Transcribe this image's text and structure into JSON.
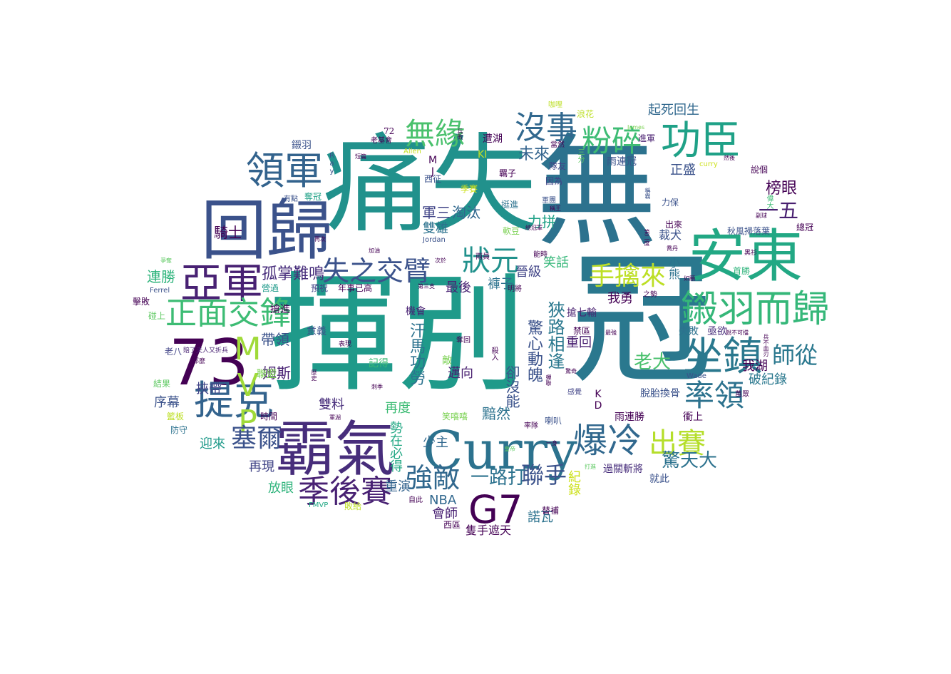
{
  "word_cloud": {
    "words": [
      {
        "text": "揮別",
        "color": "#1f9a8a"
      },
      {
        "text": "痛失",
        "color": "#21918c"
      },
      {
        "text": "無",
        "color": "#2c728e"
      },
      {
        "text": "回歸",
        "color": "#3b528b"
      },
      {
        "text": "冠",
        "color": "#2a788e"
      },
      {
        "text": "安東",
        "color": "#22a884"
      },
      {
        "text": "霸氣",
        "color": "#472d7b"
      },
      {
        "text": "Curry",
        "color": "#2c728e"
      },
      {
        "text": "73",
        "color": "#440154"
      },
      {
        "text": "亞軍",
        "color": "#482173"
      },
      {
        "text": "領軍",
        "color": "#33638d"
      },
      {
        "text": "功臣",
        "color": "#1fa187"
      },
      {
        "text": "鎩羽而歸",
        "color": "#35b779"
      },
      {
        "text": "坐鎮",
        "color": "#2a788e"
      },
      {
        "text": "正面交鋒",
        "color": "#3dbc74"
      },
      {
        "text": "G7",
        "color": "#440154"
      },
      {
        "text": "提克",
        "color": "#33638d"
      },
      {
        "text": "爆冷",
        "color": "#31688e"
      },
      {
        "text": "無緣",
        "color": "#4ac16d"
      },
      {
        "text": "狀元",
        "color": "#21918c"
      },
      {
        "text": "粉碎",
        "color": "#3dbc74"
      },
      {
        "text": "沒事",
        "color": "#31688e"
      },
      {
        "text": "失之交臂",
        "color": "#3b528b"
      },
      {
        "text": "MVP",
        "color": "#a0da39"
      },
      {
        "text": "季後賽",
        "color": "#482173"
      },
      {
        "text": "強敵",
        "color": "#31688e"
      },
      {
        "text": "出賽",
        "color": "#b5de2b"
      },
      {
        "text": "率領",
        "color": "#2c728e"
      },
      {
        "text": "手擒來",
        "color": "#bddf26"
      },
      {
        "text": "師從",
        "color": "#2a788e"
      },
      {
        "text": "塞爾",
        "color": "#3b528b"
      },
      {
        "text": "驚天大",
        "color": "#2c728e"
      },
      {
        "text": "一五",
        "color": "#481f70"
      },
      {
        "text": "聯手",
        "color": "#3b528b"
      },
      {
        "text": "老大",
        "color": "#4ac16d"
      },
      {
        "text": "孤掌難鳴",
        "color": "#472d7b"
      },
      {
        "text": "騎士",
        "color": "#440154"
      },
      {
        "text": "榜眼",
        "color": "#440154"
      },
      {
        "text": "選秀",
        "color": "#440154"
      },
      {
        "text": "起死回生",
        "color": "#31688e"
      },
      {
        "text": "正盛",
        "color": "#3b528b"
      },
      {
        "text": "未來",
        "color": "#33638d"
      },
      {
        "text": "力拼",
        "color": "#1fa187"
      },
      {
        "text": "軍三",
        "color": "#414487"
      },
      {
        "text": "淘汰",
        "color": "#31688e"
      },
      {
        "text": "雙雄",
        "color": "#2c728e"
      },
      {
        "text": "一路打",
        "color": "#2c728e"
      },
      {
        "text": "連勝",
        "color": "#2fb47c"
      },
      {
        "text": "晉級",
        "color": "#414487"
      },
      {
        "text": "笑話",
        "color": "#35b779"
      },
      {
        "text": "褲子",
        "color": "#2c728e"
      },
      {
        "text": "最後",
        "color": "#482173"
      },
      {
        "text": "我勇",
        "color": "#440154"
      },
      {
        "text": "汗馬功勞",
        "color": "#2c728e"
      },
      {
        "text": "驚心動魄",
        "color": "#3b528b"
      },
      {
        "text": "狹路相逢",
        "color": "#2a788e"
      },
      {
        "text": "帶領",
        "color": "#3b528b"
      },
      {
        "text": "姆斯",
        "color": "#482173"
      },
      {
        "text": "挾帶",
        "color": "#414487"
      },
      {
        "text": "邁向",
        "color": "#481f70"
      },
      {
        "text": "再度",
        "color": "#3dbc74"
      },
      {
        "text": "雙料",
        "color": "#472d7b"
      },
      {
        "text": "序幕",
        "color": "#3b528b"
      },
      {
        "text": "迎來",
        "color": "#1f9a8a"
      },
      {
        "text": "再現",
        "color": "#414487"
      },
      {
        "text": "放眼",
        "color": "#2fb47c"
      },
      {
        "text": "重演",
        "color": "#33638d"
      },
      {
        "text": "NBA",
        "color": "#31688e"
      },
      {
        "text": "會師",
        "color": "#482173"
      },
      {
        "text": "諾瓦",
        "color": "#2c728e"
      },
      {
        "text": "隻手遮天",
        "color": "#440154"
      },
      {
        "text": "紀錄",
        "color": "#cde11d"
      },
      {
        "text": "我湖",
        "color": "#440154"
      },
      {
        "text": "破紀錄",
        "color": "#2a788e"
      },
      {
        "text": "重回",
        "color": "#481f70"
      },
      {
        "text": "黯然",
        "color": "#2c728e"
      },
      {
        "text": "少主",
        "color": "#31688e"
      },
      {
        "text": "勢在必得",
        "color": "#22a884"
      },
      {
        "text": "卻沒能",
        "color": "#3b528b"
      },
      {
        "text": "KD",
        "color": "#440154"
      },
      {
        "text": "脫胎換骨",
        "color": "#3b528b"
      },
      {
        "text": "雨連勝",
        "color": "#440154"
      },
      {
        "text": "衝上",
        "color": "#440154"
      },
      {
        "text": "過關斬將",
        "color": "#472d7b"
      },
      {
        "text": "就此",
        "color": "#3b528b"
      },
      {
        "text": "雨連冠",
        "color": "#3b528b"
      },
      {
        "text": "裁犬",
        "color": "#3b528b"
      },
      {
        "text": "小熊",
        "color": "#2c728e"
      },
      {
        "text": "秋風掃落葉",
        "color": "#3b528b"
      },
      {
        "text": "禁區",
        "color": "#440154"
      },
      {
        "text": "搶七輸",
        "color": "#481f70"
      },
      {
        "text": "失敗",
        "color": "#2c728e"
      },
      {
        "text": "亟欲",
        "color": "#472d7b"
      },
      {
        "text": "機會",
        "color": "#482173"
      },
      {
        "text": "意義",
        "color": "#3b528b"
      },
      {
        "text": "搶進",
        "color": "#440154"
      },
      {
        "text": "聯盟",
        "color": "#7ad151"
      },
      {
        "text": "記得",
        "color": "#3dbc74"
      },
      {
        "text": "敵",
        "color": "#7ad151"
      },
      {
        "text": "擊敗",
        "color": "#440154"
      },
      {
        "text": "碰上",
        "color": "#5ec962"
      },
      {
        "text": "營過",
        "color": "#1f9a8a"
      },
      {
        "text": "預祝",
        "color": "#414487"
      },
      {
        "text": "年事已高",
        "color": "#440154"
      },
      {
        "text": "鎩羽",
        "color": "#3b528b"
      },
      {
        "text": "遭湖",
        "color": "#440154"
      },
      {
        "text": "進軍",
        "color": "#481f70"
      },
      {
        "text": "挺進",
        "color": "#2c728e"
      },
      {
        "text": "軟豆",
        "color": "#7ad151"
      },
      {
        "text": "喇叭",
        "color": "#3b528b"
      },
      {
        "text": "雙雙",
        "color": "#440154"
      },
      {
        "text": "結果",
        "color": "#5ec962"
      },
      {
        "text": "籃板",
        "color": "#bddf26"
      },
      {
        "text": "防守",
        "color": "#2c728e"
      },
      {
        "text": "時間",
        "color": "#440154"
      },
      {
        "text": "老八",
        "color": "#414487"
      },
      {
        "text": "首勝",
        "color": "#2fb47c"
      },
      {
        "text": "說個",
        "color": "#440154"
      },
      {
        "text": "總冠",
        "color": "#440154"
      },
      {
        "text": "萬眾",
        "color": "#440154"
      },
      {
        "text": "感覺",
        "color": "#414487"
      },
      {
        "text": "替補",
        "color": "#440154"
      },
      {
        "text": "夢碎",
        "color": "#440154"
      },
      {
        "text": "西區",
        "color": "#440154"
      },
      {
        "text": "敗給",
        "color": "#bddf26"
      },
      {
        "text": "FMVP",
        "color": "#22a884"
      },
      {
        "text": "西征",
        "color": "#3b528b"
      },
      {
        "text": "季賽",
        "color": "#cde11d"
      },
      {
        "text": "隊友",
        "color": "#414487"
      },
      {
        "text": "因為",
        "color": "#414487"
      },
      {
        "text": "三分",
        "color": "#5ec962"
      },
      {
        "text": "當然",
        "color": "#440154"
      },
      {
        "text": "出來",
        "color": "#440154"
      },
      {
        "text": "力保",
        "color": "#3b528b"
      },
      {
        "text": "稱霸",
        "color": "#3b528b"
      },
      {
        "text": "浪花",
        "color": "#bddf26"
      },
      {
        "text": "咖哩",
        "color": "#bddf26"
      },
      {
        "text": "72",
        "color": "#440154"
      },
      {
        "text": "老基會",
        "color": "#440154"
      },
      {
        "text": "MJ",
        "color": "#440154"
      },
      {
        "text": "KI",
        "color": "#c2df23"
      },
      {
        "text": "Allen",
        "color": "#c2df23"
      },
      {
        "text": "Ray",
        "color": "#3b528b"
      },
      {
        "text": "Ferrel",
        "color": "#3b528b"
      },
      {
        "text": "Jordan",
        "color": "#3b528b"
      },
      {
        "text": "James",
        "color": "#7ad151"
      },
      {
        "text": "Wade",
        "color": "#3b528b"
      },
      {
        "text": "curry",
        "color": "#cde11d"
      },
      {
        "text": "奪冠",
        "color": "#1fa187"
      },
      {
        "text": "有點",
        "color": "#3b528b"
      },
      {
        "text": "表現",
        "color": "#440154"
      },
      {
        "text": "那麼",
        "color": "#440154"
      },
      {
        "text": "賠了夫人又折兵",
        "color": "#482173"
      },
      {
        "text": "黑衫",
        "color": "#440154"
      },
      {
        "text": "偉大",
        "color": "#3dbc74"
      },
      {
        "text": "然後",
        "color": "#440154"
      },
      {
        "text": "加油",
        "color": "#440154"
      },
      {
        "text": "第三支",
        "color": "#440154"
      },
      {
        "text": "次於",
        "color": "#440154"
      },
      {
        "text": "爭奪",
        "color": "#5ec962"
      },
      {
        "text": "最強",
        "color": "#440154"
      },
      {
        "text": "皇帝",
        "color": "#5ec962"
      },
      {
        "text": "奪回",
        "color": "#440154"
      },
      {
        "text": "率隊",
        "color": "#440154"
      },
      {
        "text": "之勢",
        "color": "#440154"
      },
      {
        "text": "兩員",
        "color": "#440154"
      },
      {
        "text": "能時",
        "color": "#440154"
      },
      {
        "text": "笑嘻嘻",
        "color": "#7ad151"
      },
      {
        "text": "軍團",
        "color": "#3b528b"
      },
      {
        "text": "打進",
        "color": "#5ec962"
      },
      {
        "text": "自此",
        "color": "#440154"
      },
      {
        "text": "然後",
        "color": "#440154"
      },
      {
        "text": "喬丹",
        "color": "#440154"
      },
      {
        "text": "如願",
        "color": "#440154"
      },
      {
        "text": "副球",
        "color": "#440154"
      },
      {
        "text": "明將",
        "color": "#440154"
      },
      {
        "text": "軍湖",
        "color": "#440154"
      },
      {
        "text": "短篇",
        "color": "#440154"
      },
      {
        "text": "再次",
        "color": "#440154"
      },
      {
        "text": "兵敗",
        "color": "#440154"
      },
      {
        "text": "驚奇",
        "color": "#440154"
      },
      {
        "text": "蟬聯",
        "color": "#440154"
      },
      {
        "text": "羈子",
        "color": "#440154"
      },
      {
        "text": "稱王",
        "color": "#440154"
      },
      {
        "text": "第二度",
        "color": "#440154"
      },
      {
        "text": "兵不血刃",
        "color": "#440154"
      },
      {
        "text": "銳不可擋",
        "color": "#440154"
      },
      {
        "text": "刺季",
        "color": "#440154"
      },
      {
        "text": "歷史",
        "color": "#440154"
      },
      {
        "text": "殺入",
        "color": "#440154"
      },
      {
        "text": "一身",
        "color": "#440154"
      },
      {
        "text": "總冠軍",
        "color": "#440154"
      }
    ]
  }
}
